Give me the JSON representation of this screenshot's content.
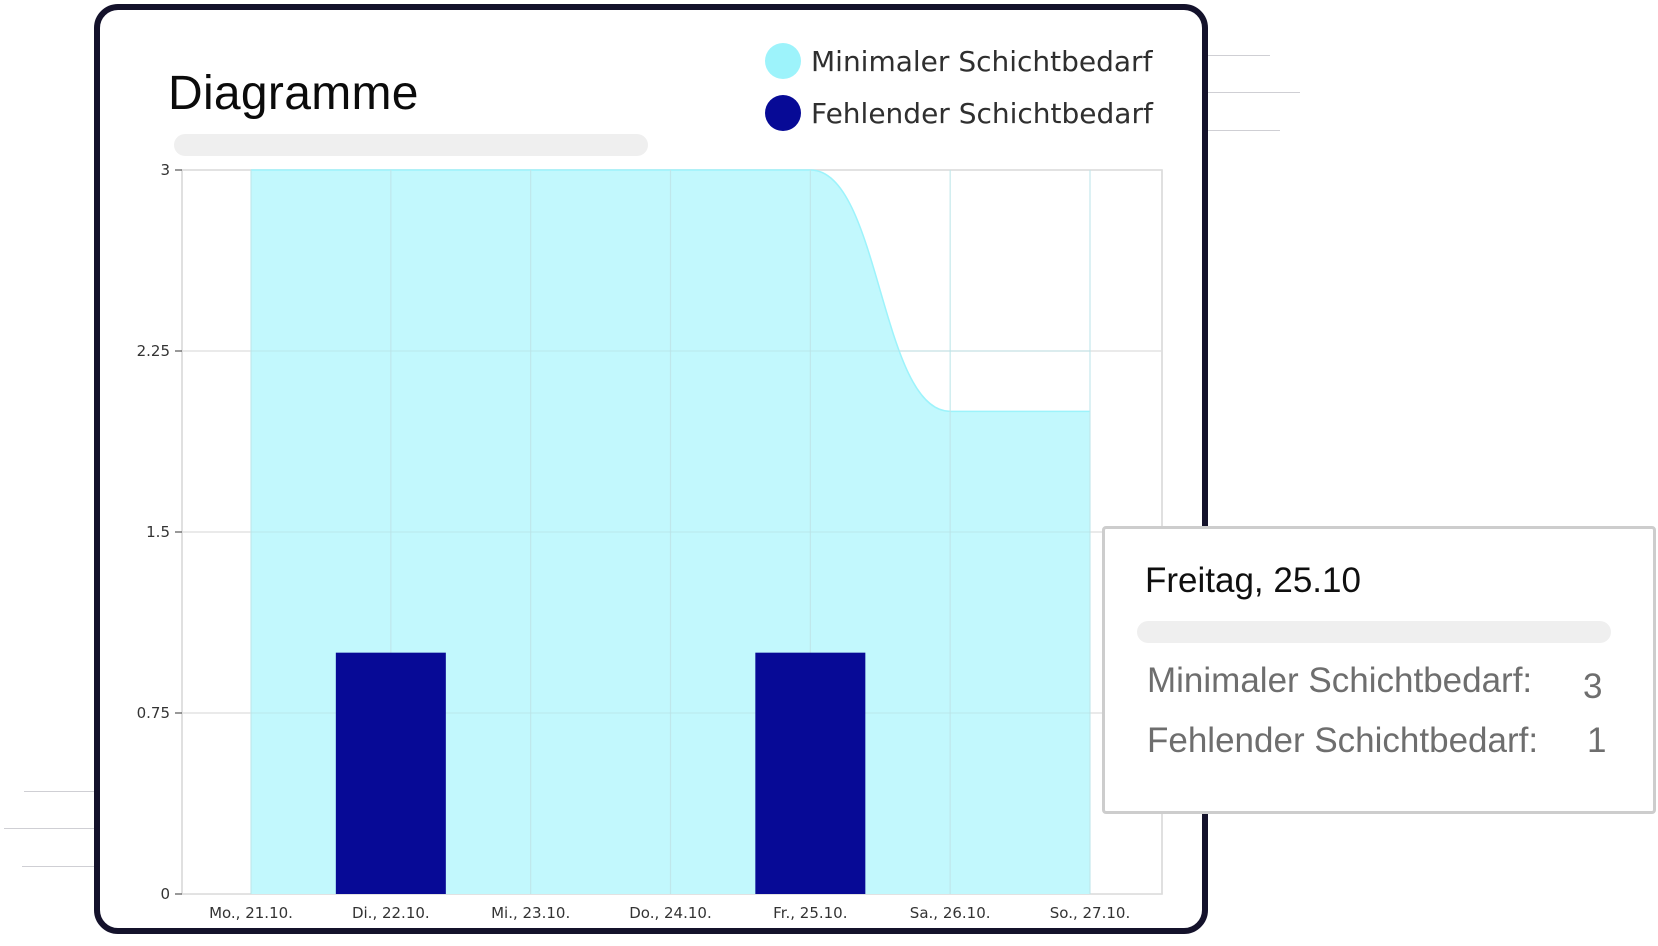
{
  "card": {
    "title": "Diagramme"
  },
  "legend": [
    {
      "label": "Minimaler Schichtbedarf",
      "color": "#9df3fb",
      "icon": "legend-dot-icon"
    },
    {
      "label": "Fehlender Schichtbedarf",
      "color": "#070a96",
      "icon": "legend-dot-icon"
    }
  ],
  "tooltip": {
    "title": "Freitag, 25.10",
    "rows": [
      {
        "label": "Minimaler Schichtbedarf:",
        "value": "3"
      },
      {
        "label": "Fehlender Schichtbedarf:",
        "value": "1"
      }
    ]
  },
  "chart_data": {
    "type": "bar",
    "categories": [
      "Mo., 21.10.",
      "Di., 22.10.",
      "Mi., 23.10.",
      "Do., 24.10.",
      "Fr., 25.10.",
      "Sa., 26.10.",
      "So., 27.10."
    ],
    "series": [
      {
        "name": "Minimaler Schichtbedarf",
        "type": "area",
        "values": [
          3,
          3,
          3,
          3,
          3,
          2,
          2
        ],
        "color": "#c2f8fd",
        "line_color": "#9df3fb"
      },
      {
        "name": "Fehlender Schichtbedarf",
        "type": "bar",
        "values": [
          0,
          1,
          0,
          0,
          1,
          0,
          0
        ],
        "color": "#070a96"
      }
    ],
    "y_ticks": [
      "0",
      "0.75",
      "1.5",
      "2.25",
      "3"
    ],
    "ylim": [
      0,
      3
    ],
    "grid": true,
    "legend_position": "top-right",
    "title": "",
    "xlabel": "",
    "ylabel": ""
  }
}
